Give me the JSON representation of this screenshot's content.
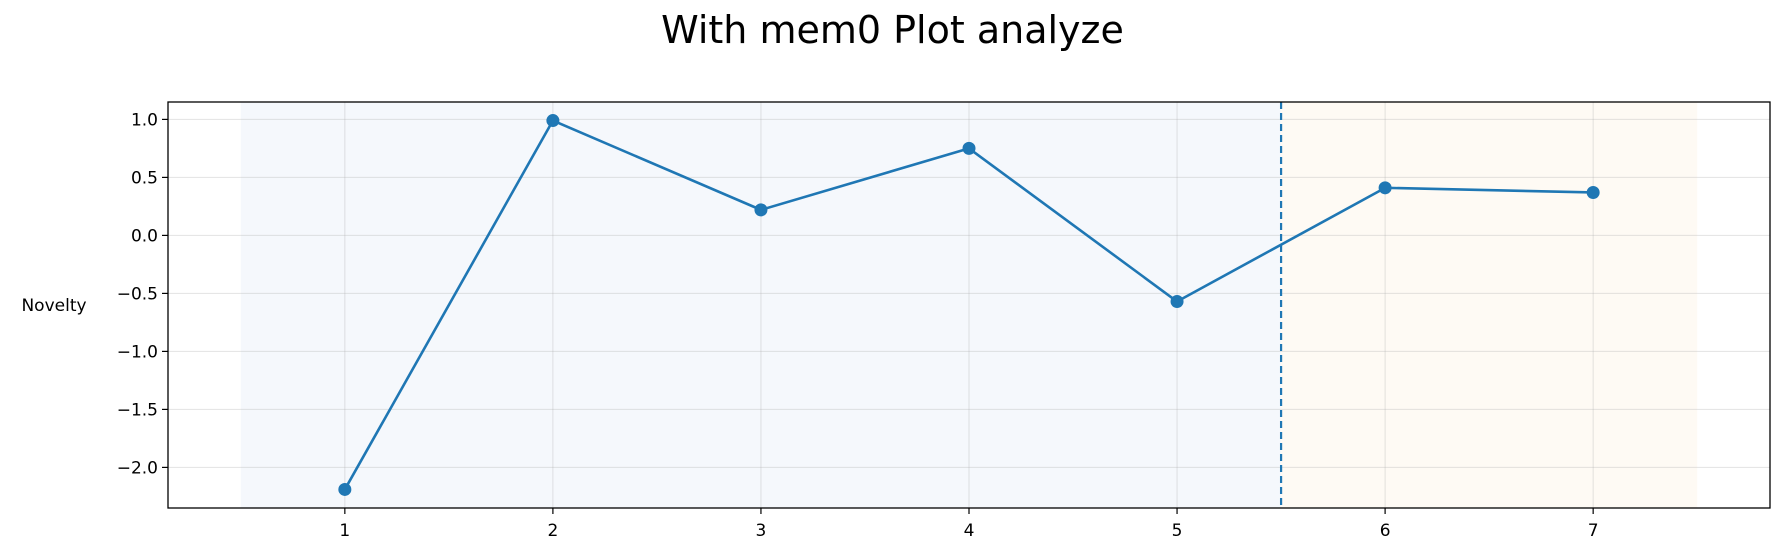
{
  "chart_data": {
    "type": "line",
    "title": "With mem0 Plot analyze",
    "xlabel": "",
    "ylabel": "Novelty",
    "x": [
      1,
      2,
      3,
      4,
      5,
      6,
      7
    ],
    "series": [
      {
        "values": [
          -2.19,
          0.99,
          0.22,
          0.75,
          -0.57,
          0.41,
          0.37
        ],
        "color": "#1f77b4"
      }
    ],
    "xticks": [
      "1",
      "2",
      "3",
      "4",
      "5",
      "6",
      "7"
    ],
    "yticks": [
      "1.0",
      "0.5",
      "0.0",
      "−0.5",
      "−1.0",
      "−1.5",
      "−2.0"
    ],
    "ytick_values": [
      1.0,
      0.5,
      0.0,
      -0.5,
      -1.0,
      -1.5,
      -2.0
    ],
    "xlim": [
      0.15,
      7.85
    ],
    "ylim": [
      -2.35,
      1.15
    ],
    "grid": true,
    "vline": {
      "x": 5.5,
      "style": "dashed",
      "color": "#1f77b4"
    },
    "shaded_regions": [
      {
        "x_range": [
          0.5,
          5.5
        ],
        "color": "#f5f8fc"
      },
      {
        "x_range": [
          5.5,
          7.5
        ],
        "color": "#fefaf4"
      }
    ]
  }
}
